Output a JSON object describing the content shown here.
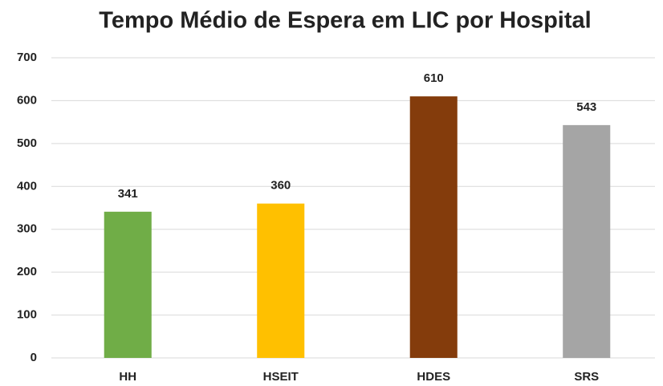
{
  "chart_data": {
    "type": "bar",
    "title": "Tempo Médio de Espera em LIC por Hospital",
    "categories": [
      "HH",
      "HSEIT",
      "HDES",
      "SRS"
    ],
    "values": [
      341,
      360,
      610,
      543
    ],
    "colors": [
      "#70ad47",
      "#ffc000",
      "#843c0c",
      "#a5a5a5"
    ],
    "ylim": [
      0,
      700
    ],
    "yticks": [
      0,
      100,
      200,
      300,
      400,
      500,
      600,
      700
    ],
    "grid": true
  }
}
